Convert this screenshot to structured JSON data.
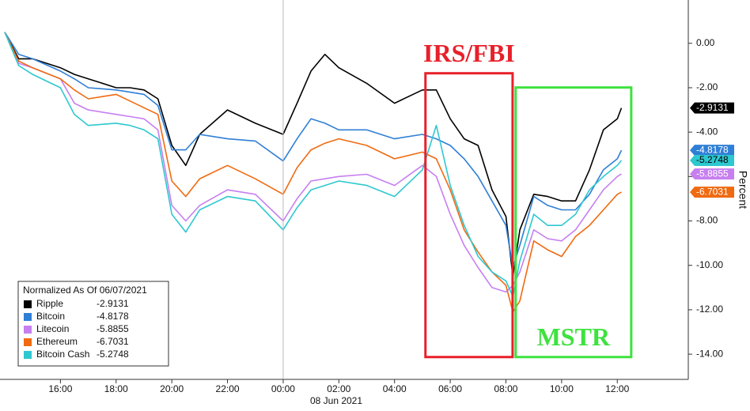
{
  "chart_data": {
    "type": "line",
    "ylabel": "Percent",
    "xlabel": "08 Jun 2021",
    "legend_title": "Normalized As Of 06/07/2021",
    "legend": "lower left",
    "x": [
      0,
      0.5,
      1,
      2,
      2.5,
      3,
      4,
      4.5,
      5,
      5.5,
      6,
      6.5,
      7,
      8,
      9,
      10,
      10.5,
      11,
      11.5,
      12,
      13,
      14,
      15,
      15.5,
      16,
      16.5,
      17,
      17.5,
      18,
      18.25,
      18.5,
      19,
      19.5,
      20,
      20.5,
      21,
      21.5,
      22,
      22.15
    ],
    "series": [
      {
        "name": "Ripple",
        "color": "#000000",
        "values": [
          0.5,
          -0.7,
          -0.7,
          -1.1,
          -1.4,
          -1.6,
          -2.0,
          -2.0,
          -2.1,
          -2.5,
          -4.6,
          -5.5,
          -4.1,
          -3.0,
          -3.6,
          -4.1,
          -2.7,
          -1.25,
          -0.5,
          -1.1,
          -1.8,
          -2.7,
          -2.1,
          -2.1,
          -3.4,
          -4.3,
          -4.6,
          -6.6,
          -7.8,
          -10.5,
          -8.4,
          -6.8,
          -6.9,
          -7.1,
          -7.1,
          -5.7,
          -3.9,
          -3.4,
          -2.9131
        ]
      },
      {
        "name": "Bitcoin",
        "color": "#2f7fd6",
        "values": [
          0.5,
          -0.5,
          -0.7,
          -1.25,
          -1.6,
          -2.0,
          -2.1,
          -2.2,
          -2.3,
          -2.8,
          -4.8,
          -4.8,
          -4.1,
          -4.3,
          -4.4,
          -5.3,
          -4.3,
          -3.4,
          -3.6,
          -3.9,
          -3.9,
          -4.3,
          -4.1,
          -4.3,
          -4.6,
          -5.2,
          -6.0,
          -7.1,
          -8.2,
          -10.1,
          -9.1,
          -6.9,
          -7.3,
          -7.5,
          -7.5,
          -6.8,
          -5.7,
          -5.2,
          -4.8178
        ]
      },
      {
        "name": "Litecoin",
        "color": "#c77ff0",
        "values": [
          0.5,
          -0.9,
          -1.1,
          -1.6,
          -2.7,
          -3.0,
          -3.2,
          -3.3,
          -3.4,
          -3.9,
          -7.3,
          -8.0,
          -7.3,
          -6.6,
          -6.8,
          -8.0,
          -7.0,
          -6.2,
          -6.1,
          -6.0,
          -5.9,
          -6.4,
          -5.5,
          -6.0,
          -7.7,
          -9.1,
          -10.1,
          -11.0,
          -11.2,
          -10.9,
          -10.3,
          -8.4,
          -8.8,
          -8.9,
          -8.4,
          -7.5,
          -6.6,
          -6.0,
          -5.8855
        ]
      },
      {
        "name": "Ethereum",
        "color": "#f06a10",
        "values": [
          0.5,
          -0.8,
          -1.1,
          -1.6,
          -2.1,
          -2.5,
          -2.3,
          -2.6,
          -2.9,
          -3.2,
          -6.2,
          -6.9,
          -6.1,
          -5.5,
          -6.1,
          -6.8,
          -5.6,
          -4.8,
          -4.5,
          -4.3,
          -4.6,
          -5.2,
          -4.9,
          -5.2,
          -6.6,
          -8.4,
          -9.4,
          -10.3,
          -10.9,
          -12.1,
          -11.6,
          -8.9,
          -9.3,
          -9.6,
          -8.7,
          -8.2,
          -7.5,
          -6.8,
          -6.7031
        ]
      },
      {
        "name": "Bitcoin Cash",
        "color": "#2ec8d0",
        "values": [
          0.5,
          -1.0,
          -1.4,
          -2.0,
          -3.2,
          -3.7,
          -3.6,
          -3.7,
          -3.9,
          -4.3,
          -7.7,
          -8.5,
          -7.5,
          -6.9,
          -7.1,
          -8.4,
          -7.4,
          -6.6,
          -6.4,
          -6.2,
          -6.4,
          -6.9,
          -5.7,
          -3.7,
          -6.4,
          -8.2,
          -9.6,
          -10.3,
          -10.7,
          -11.4,
          -9.8,
          -7.7,
          -8.2,
          -8.2,
          -7.7,
          -6.6,
          -6.0,
          -5.5,
          -5.2748
        ]
      }
    ],
    "xlim": [
      0,
      24.55
    ],
    "xticks": [
      {
        "value": 2,
        "label": "16:00"
      },
      {
        "value": 4,
        "label": "18:00"
      },
      {
        "value": 6,
        "label": "20:00"
      },
      {
        "value": 8,
        "label": "22:00"
      },
      {
        "value": 10,
        "label": "00:00"
      },
      {
        "value": 12,
        "label": "02:00"
      },
      {
        "value": 14,
        "label": "04:00"
      },
      {
        "value": 16,
        "label": "06:00"
      },
      {
        "value": 18,
        "label": "08:00"
      },
      {
        "value": 20,
        "label": "10:00"
      },
      {
        "value": 22,
        "label": "12:00"
      }
    ],
    "xdivider": 10,
    "ylim": [
      -15.1,
      1.95
    ],
    "yticks": [
      {
        "value": 0,
        "label": "0.00"
      },
      {
        "value": -2,
        "label": "-2.00"
      },
      {
        "value": -4,
        "label": "-4.00"
      },
      {
        "value": -6,
        "label": "-6.00"
      },
      {
        "value": -8,
        "label": "-8.00"
      },
      {
        "value": -10,
        "label": "-10.00"
      },
      {
        "value": -12,
        "label": "-12.00"
      },
      {
        "value": -14,
        "label": "-14.00"
      }
    ],
    "annotations": [
      {
        "text": "IRS/FBI",
        "color": "#e8202a",
        "x0": 15.11,
        "x1": 18.24,
        "y0": -1.35,
        "y1": -14.13,
        "label": "above"
      },
      {
        "text": "MSTR",
        "color": "#3ee23e",
        "x0": 18.35,
        "x1": 22.5,
        "y0": -1.99,
        "y1": -14.13,
        "label": "inside-bottom"
      }
    ]
  }
}
